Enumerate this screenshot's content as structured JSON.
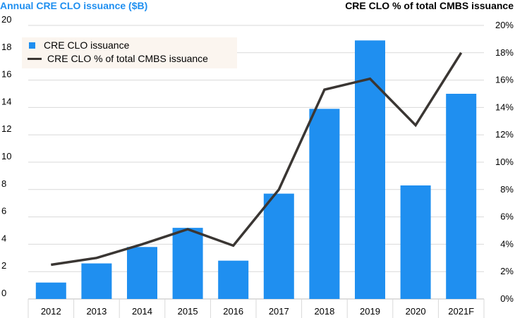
{
  "chart_data": {
    "type": "bar+line",
    "left_axis_title": "Annual CRE CLO issuance ($B)",
    "right_axis_title": "CRE CLO % of total CMBS issuance",
    "categories": [
      "2012",
      "2013",
      "2014",
      "2015",
      "2016",
      "2017",
      "2018",
      "2019",
      "2020",
      "2021F"
    ],
    "series": [
      {
        "name": "CRE CLO issuance",
        "type": "bar",
        "axis": "left",
        "values": [
          1.2,
          2.6,
          3.8,
          5.2,
          2.8,
          7.7,
          13.9,
          18.9,
          8.3,
          15.0
        ]
      },
      {
        "name": "CRE CLO % of total CMBS issuance",
        "type": "line",
        "axis": "right",
        "values": [
          2.5,
          3.0,
          4.0,
          5.1,
          3.9,
          8.0,
          15.3,
          16.1,
          12.7,
          18.0
        ]
      }
    ],
    "left_ylim": [
      0,
      20
    ],
    "right_ylim": [
      0,
      20
    ],
    "left_ticks": [
      "0",
      "2",
      "4",
      "6",
      "8",
      "10",
      "12",
      "14",
      "16",
      "18",
      "20"
    ],
    "right_ticks": [
      "0%",
      "2%",
      "4%",
      "6%",
      "8%",
      "10%",
      "12%",
      "14%",
      "16%",
      "18%",
      "20%"
    ],
    "legend": [
      "CRE CLO issuance",
      "CRE CLO % of total CMBS issuance"
    ],
    "legend_position": "top-left",
    "grid": true,
    "colors": {
      "bar": "#1f8ff0",
      "line": "#3a3633",
      "grid": "#d9d9d9",
      "legend_bg": "#fbf5ef"
    }
  }
}
